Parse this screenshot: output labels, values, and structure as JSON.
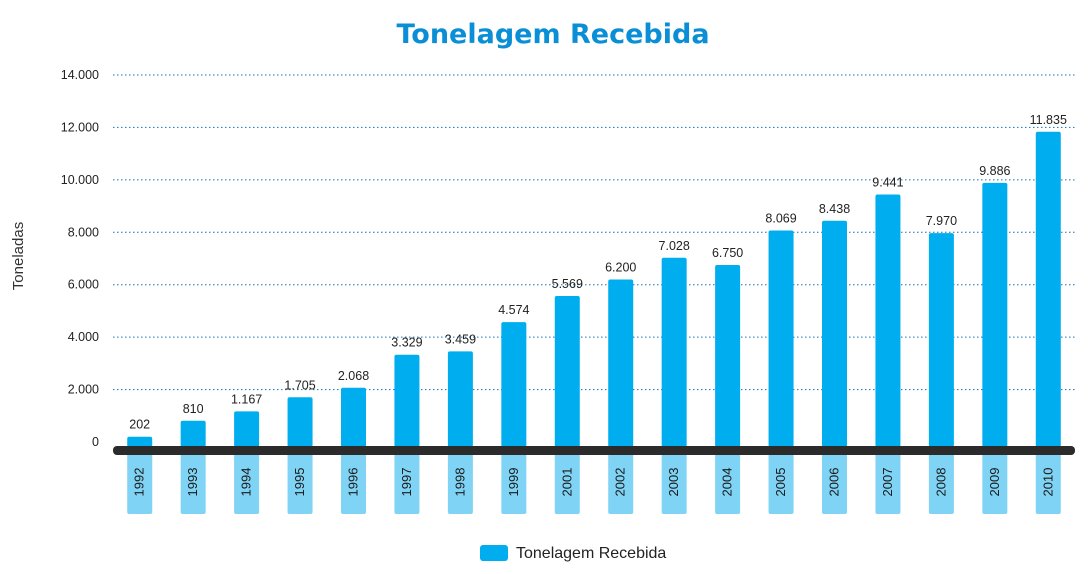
{
  "colors": {
    "bar": "#00aeef",
    "label_box": "#7fd3f4",
    "title": "#0a8fd6",
    "grid": "#1a6fb0",
    "baseline": "#2b2b2b"
  },
  "chart_data": {
    "type": "bar",
    "title": "Tonelagem Recebida",
    "xlabel": "",
    "ylabel": "Toneladas",
    "ylim": [
      0,
      14000
    ],
    "yticks": [
      0,
      2000,
      4000,
      6000,
      8000,
      10000,
      12000,
      14000
    ],
    "ytick_labels": [
      "0",
      "2.000",
      "4.000",
      "6.000",
      "8.000",
      "10.000",
      "12.000",
      "14.000"
    ],
    "grid": true,
    "legend": "bottom-center",
    "categories": [
      "1992",
      "1993",
      "1994",
      "1995",
      "1996",
      "1997",
      "1998",
      "1999",
      "2001",
      "2002",
      "2003",
      "2004",
      "2005",
      "2006",
      "2007",
      "2008",
      "2009",
      "2010"
    ],
    "series": [
      {
        "name": "Tonelagem Recebida",
        "values": [
          202,
          810,
          1167,
          1705,
          2068,
          3329,
          3459,
          4574,
          5569,
          6200,
          7028,
          6750,
          8069,
          8438,
          9441,
          7970,
          9886,
          11835
        ],
        "value_labels": [
          "202",
          "810",
          "1.167",
          "1.705",
          "2.068",
          "3.329",
          "3.459",
          "4.574",
          "5.569",
          "6.200",
          "7.028",
          "6.750",
          "8.069",
          "8.438",
          "9.441",
          "7.970",
          "9.886",
          "11.835"
        ]
      }
    ]
  }
}
